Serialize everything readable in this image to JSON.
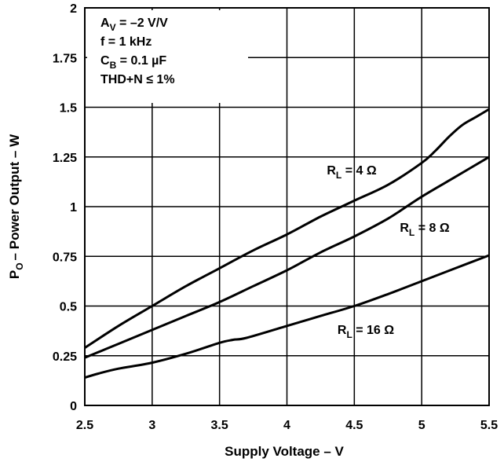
{
  "chart_data": {
    "type": "line",
    "title": "",
    "xlabel": "Supply Voltage – V",
    "ylabel": {
      "main": "P",
      "sub": "O",
      "rest": "– Power Output – W"
    },
    "xlim": [
      2.5,
      5.5
    ],
    "ylim": [
      0,
      2
    ],
    "x_ticks": [
      2.5,
      3,
      3.5,
      4,
      4.5,
      5,
      5.5
    ],
    "x_tick_labels": [
      "2.5",
      "3",
      "3.5",
      "4",
      "4.5",
      "5",
      "5.5"
    ],
    "y_ticks": [
      0,
      0.25,
      0.5,
      0.75,
      1,
      1.25,
      1.5,
      1.75,
      2
    ],
    "y_tick_labels": [
      "0",
      "0.25",
      "0.5",
      "0.75",
      "1",
      "1.25",
      "1.5",
      "1.75",
      "2"
    ],
    "grid": true,
    "conditions": [
      {
        "main": "A",
        "sub": "V",
        "rest": " = –2 V/V"
      },
      {
        "main": "f = 1 kHz",
        "sub": "",
        "rest": ""
      },
      {
        "main": "C",
        "sub": "B",
        "rest": " = 0.1 µF"
      },
      {
        "main": "THD+N ≤ 1%",
        "sub": "",
        "rest": ""
      }
    ],
    "series": [
      {
        "name": {
          "main": "R",
          "sub": "L",
          "rest": " = 4 Ω"
        },
        "x": [
          2.5,
          2.75,
          3.0,
          3.25,
          3.5,
          3.75,
          4.0,
          4.25,
          4.5,
          4.75,
          5.0,
          5.1,
          5.2,
          5.3,
          5.4,
          5.5
        ],
        "y": [
          0.29,
          0.4,
          0.5,
          0.6,
          0.69,
          0.78,
          0.86,
          0.95,
          1.03,
          1.11,
          1.22,
          1.28,
          1.35,
          1.41,
          1.45,
          1.49
        ]
      },
      {
        "name": {
          "main": "R",
          "sub": "L",
          "rest": " = 8 Ω"
        },
        "x": [
          2.5,
          2.75,
          3.0,
          3.25,
          3.5,
          3.75,
          4.0,
          4.25,
          4.5,
          4.75,
          5.0,
          5.25,
          5.5
        ],
        "y": [
          0.24,
          0.31,
          0.38,
          0.45,
          0.52,
          0.6,
          0.68,
          0.77,
          0.85,
          0.94,
          1.05,
          1.15,
          1.25
        ]
      },
      {
        "name": {
          "main": "R",
          "sub": "L",
          "rest": " = 16 Ω"
        },
        "x": [
          2.5,
          2.6,
          2.75,
          3.0,
          3.25,
          3.5,
          3.6,
          3.7,
          4.0,
          4.25,
          4.5,
          4.75,
          5.0,
          5.25,
          5.5
        ],
        "y": [
          0.14,
          0.16,
          0.185,
          0.215,
          0.26,
          0.315,
          0.33,
          0.34,
          0.4,
          0.45,
          0.5,
          0.56,
          0.625,
          0.69,
          0.755
        ]
      }
    ],
    "colors": {
      "line": "#000000",
      "grid": "#000000",
      "background": "#ffffff"
    }
  }
}
